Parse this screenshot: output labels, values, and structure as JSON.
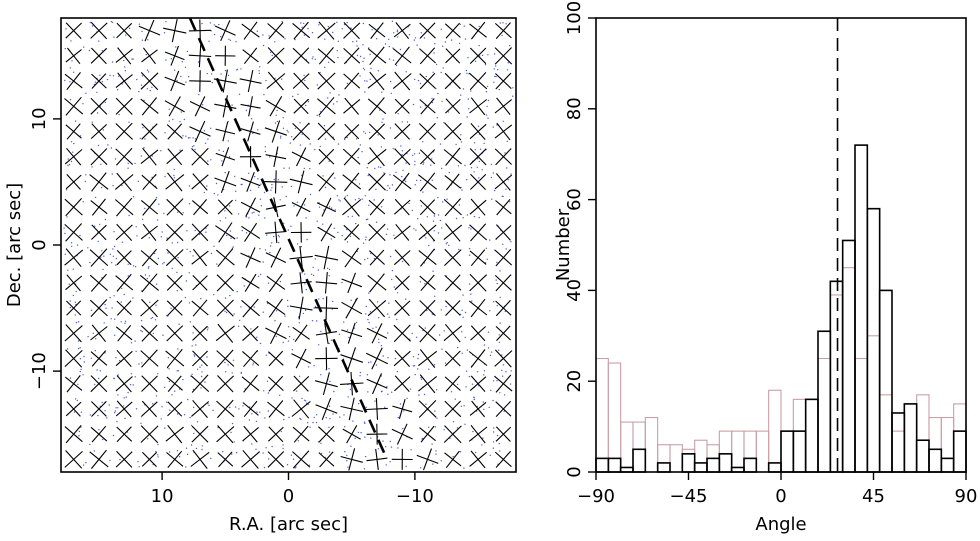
{
  "chart_data": [
    {
      "type": "scatter",
      "xlabel": "R.A. [arc sec]",
      "ylabel": "Dec. [arc sec]",
      "xlim": [
        18,
        -18
      ],
      "ylim": [
        -18,
        18
      ],
      "x_ticks": [
        10,
        0,
        -10
      ],
      "x_tick_labels": [
        "10",
        "0",
        "−10"
      ],
      "y_ticks": [
        10,
        0,
        -10
      ],
      "y_tick_labels": [
        "10",
        "0",
        "−10"
      ],
      "grid_spacing": 2,
      "markers": "cross (two perpendicular segments per grid node)",
      "dashed_line": {
        "x": [
          7.8,
          -7.8
        ],
        "y": [
          18.0,
          -17.0
        ]
      },
      "background_points_color": "#4a5ee0",
      "marker_color": "#000000"
    },
    {
      "type": "histogram",
      "xlabel": "Angle",
      "ylabel": "Number",
      "xlim": [
        -90,
        90
      ],
      "ylim": [
        0,
        100
      ],
      "x_ticks": [
        -90,
        -45,
        0,
        45,
        90
      ],
      "x_tick_labels": [
        "−90",
        "−45",
        "0",
        "45",
        "90"
      ],
      "y_ticks": [
        0,
        20,
        40,
        60,
        80,
        100
      ],
      "y_tick_labels": [
        "0",
        "20",
        "40",
        "60",
        "80",
        "100"
      ],
      "bin_edges": [
        -90,
        -84,
        -78,
        -72,
        -66,
        -60,
        -54,
        -48,
        -42,
        -36,
        -30,
        -24,
        -18,
        -12,
        -6,
        0,
        6,
        12,
        18,
        24,
        30,
        36,
        42,
        48,
        54,
        60,
        66,
        72,
        78,
        84,
        90
      ],
      "series": [
        {
          "color": "#000000",
          "values": [
            3,
            3,
            1,
            5,
            0,
            2,
            0,
            4,
            2,
            3,
            4,
            1,
            3,
            0,
            2,
            9,
            9,
            16,
            31,
            42,
            51,
            72,
            58,
            40,
            13,
            15,
            7,
            5,
            3,
            9
          ]
        },
        {
          "color": "#c8a0a6",
          "values": [
            25,
            24,
            11,
            11,
            12,
            6,
            6,
            5,
            7,
            6,
            9,
            9,
            9,
            9,
            18,
            9,
            16,
            16,
            25,
            39,
            45,
            25,
            30,
            17,
            9,
            15,
            17,
            12,
            12,
            15
          ]
        }
      ],
      "dashed_line": {
        "x": 27.5
      },
      "line_color": "#000000"
    }
  ]
}
